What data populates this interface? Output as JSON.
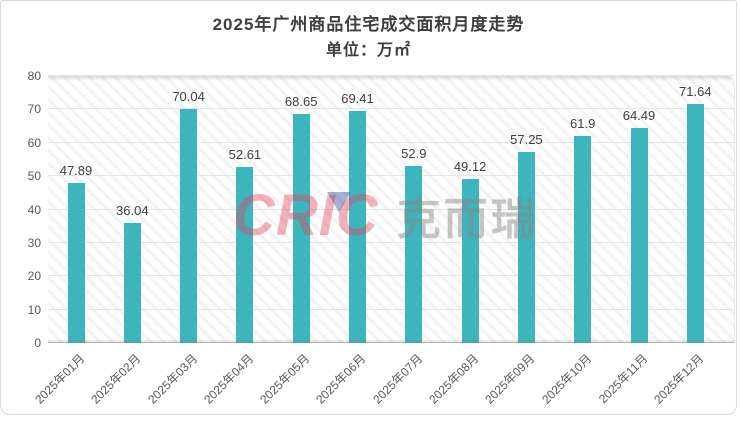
{
  "watermark": {
    "logo_text": "CRIC",
    "brand_text": "克而瑞"
  },
  "chart_data": {
    "type": "bar",
    "title": "2025年广州商品住宅成交面积月度走势",
    "subtitle": "单位：万㎡",
    "categories": [
      "2025年01月",
      "2025年02月",
      "2025年03月",
      "2025年04月",
      "2025年05月",
      "2025年06月",
      "2025年07月",
      "2025年08月",
      "2025年09月",
      "2025年10月",
      "2025年11月",
      "2025年12月"
    ],
    "values": [
      47.89,
      36.04,
      70.04,
      52.61,
      68.65,
      69.41,
      52.9,
      49.12,
      57.25,
      61.9,
      64.49,
      71.64
    ],
    "value_labels": [
      "47.89",
      "36.04",
      "70.04",
      "52.61",
      "68.65",
      "69.41",
      "52.9",
      "49.12",
      "57.25",
      "61.9",
      "64.49",
      "71.64"
    ],
    "xlabel": "",
    "ylabel": "",
    "ylim": [
      0,
      80
    ],
    "yticks": [
      0,
      10,
      20,
      30,
      40,
      50,
      60,
      70,
      80
    ],
    "grid": true,
    "legend_position": "none",
    "bar_color": "#3db5bd",
    "grid_color": "#e4e4e4",
    "label_color": "#404040",
    "axis_text_color": "#595959",
    "hatch_background": true,
    "x_tick_rotation_deg": -45
  }
}
